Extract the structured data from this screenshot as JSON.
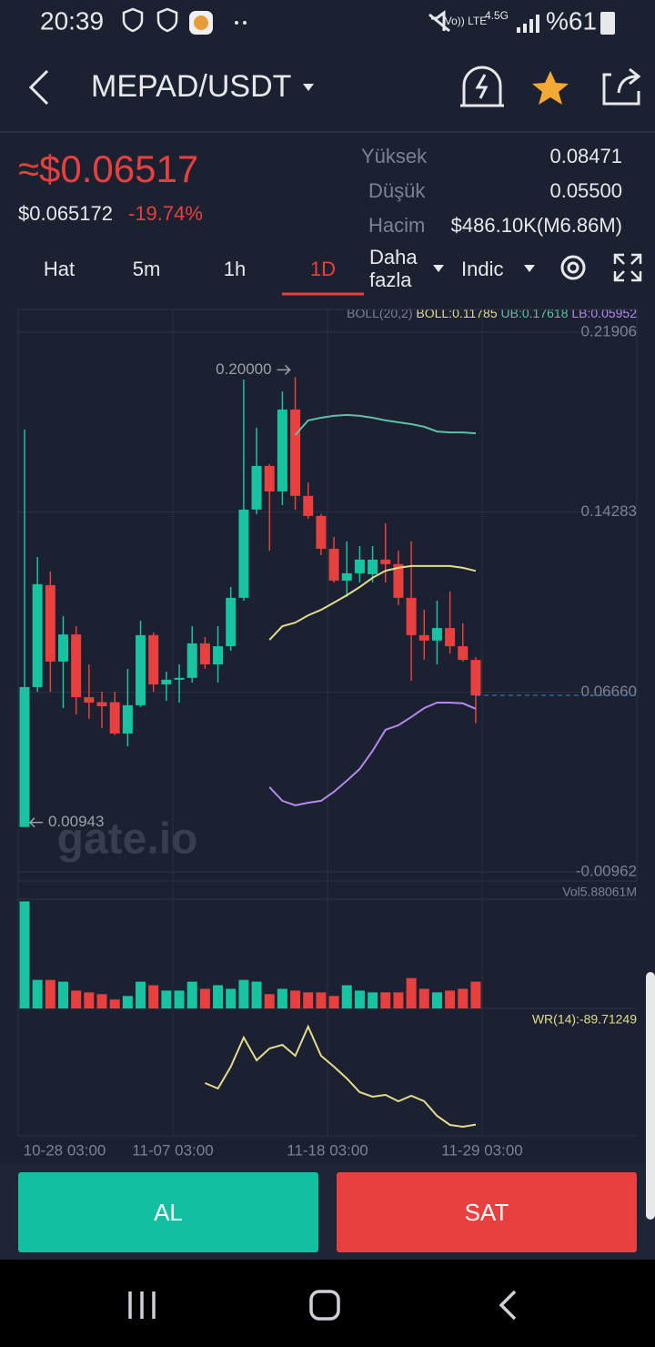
{
  "status_bar": {
    "time": "20:39",
    "network": "4.5G",
    "battery": "%61"
  },
  "header": {
    "pair": "MEPAD/USDT"
  },
  "price": {
    "approx": "≈$0.06517",
    "exact": "$0.065172",
    "change": "-19.74%"
  },
  "stats": [
    {
      "label": "Yüksek",
      "value": "0.08471"
    },
    {
      "label": "Düşük",
      "value": "0.05500"
    },
    {
      "label": "Hacim",
      "value": "$486.10K(M6.86M)"
    }
  ],
  "tabs": [
    "Hat",
    "5m",
    "1h",
    "1D"
  ],
  "more": [
    "Daha",
    "fazla"
  ],
  "indic": "Indic",
  "chart_data": {
    "type": "candlestick",
    "up_color": "#17c3a1",
    "down_color": "#e8403e",
    "ylim": [
      -0.01348,
      0.2287
    ],
    "yticks": [
      0.21906,
      0.14283,
      {
        "value": 0.0666,
        "label": "0.06660"
      },
      -0.00962
    ],
    "x_labels": [
      "10-28 03:00",
      "11-07 03:00",
      "11-18 03:00",
      "11-29 03:00"
    ],
    "open": [
      0.0094,
      0.0687,
      0.1119,
      0.0795,
      0.091,
      0.0644,
      0.0623,
      0.0623,
      0.049,
      0.061,
      0.0907,
      0.0698,
      0.0718,
      0.0726,
      0.0872,
      0.0783,
      0.086,
      0.1065,
      0.1439,
      0.1624,
      0.1516,
      0.1863,
      0.1497,
      0.1412,
      0.1273,
      0.1138,
      0.1169,
      0.1165,
      0.1227,
      0.1208,
      0.1065,
      0.0907,
      0.0884,
      0.0937,
      0.086,
      0.0802
    ],
    "high": [
      0.1778,
      0.1238,
      0.1177,
      0.0988,
      0.0945,
      0.0783,
      0.0667,
      0.0667,
      0.0764,
      0.0968,
      0.0918,
      0.0752,
      0.0783,
      0.0945,
      0.0899,
      0.0945,
      0.1111,
      0.199,
      0.1786,
      0.1632,
      0.194,
      0.2,
      0.1554,
      0.142,
      0.1323,
      0.1304,
      0.1284,
      0.1284,
      0.1381,
      0.1265,
      0.1304,
      0.1015,
      0.1053,
      0.1092,
      0.0957,
      0.0814
    ],
    "low": [
      0.0094,
      0.0667,
      0.0667,
      0.0598,
      0.0571,
      0.0552,
      0.0514,
      0.0483,
      0.0436,
      0.0602,
      0.0667,
      0.0629,
      0.0621,
      0.0706,
      0.0764,
      0.0706,
      0.0841,
      0.1053,
      0.1419,
      0.1265,
      0.1458,
      0.1439,
      0.14,
      0.1246,
      0.113,
      0.1069,
      0.113,
      0.113,
      0.113,
      0.1034,
      0.0714,
      0.0803,
      0.0783,
      0.0829,
      0.0795,
      0.0533
    ],
    "close": [
      0.0687,
      0.1123,
      0.0795,
      0.091,
      0.0644,
      0.0621,
      0.0606,
      0.049,
      0.061,
      0.0907,
      0.0698,
      0.0718,
      0.0726,
      0.0872,
      0.0783,
      0.086,
      0.1065,
      0.1439,
      0.1624,
      0.1516,
      0.1863,
      0.1497,
      0.1412,
      0.1273,
      0.1138,
      0.1169,
      0.1227,
      0.1227,
      0.1208,
      0.1065,
      0.0907,
      0.0884,
      0.0937,
      0.086,
      0.0802,
      0.06517
    ],
    "max_label": "0.20000",
    "min_label": "0.00943",
    "watermark": "gate.io",
    "boll_legend": [
      "BOLL(20,2)",
      "BOLL:0.11785",
      "UB:0.17618",
      "LB:0.05952"
    ],
    "boll": [
      {
        "name": "mid",
        "color": "#e3dc8c",
        "values": [
          null,
          null,
          null,
          null,
          null,
          null,
          null,
          null,
          null,
          null,
          null,
          null,
          null,
          null,
          null,
          null,
          null,
          null,
          null,
          0.0887,
          0.0945,
          0.096,
          0.0991,
          0.1014,
          0.1045,
          0.1076,
          0.1111,
          0.115,
          0.118,
          0.1192,
          0.12,
          0.12,
          0.12,
          0.12,
          0.1192,
          0.1179
        ]
      },
      {
        "name": "upper",
        "color": "#5fbfa8",
        "values": [
          null,
          null,
          null,
          null,
          null,
          null,
          null,
          null,
          null,
          null,
          null,
          null,
          null,
          null,
          null,
          null,
          null,
          null,
          null,
          null,
          null,
          0.1755,
          0.1817,
          0.1828,
          0.1836,
          0.184,
          0.1836,
          0.1828,
          0.1817,
          0.1809,
          0.1801,
          0.179,
          0.177,
          0.1766,
          0.1766,
          0.1762
        ]
      },
      {
        "name": "lower",
        "color": "#b888ee",
        "values": [
          null,
          null,
          null,
          null,
          null,
          null,
          null,
          null,
          null,
          null,
          null,
          null,
          null,
          null,
          null,
          null,
          null,
          null,
          null,
          0.0263,
          0.0205,
          0.0186,
          0.0197,
          0.0205,
          0.0243,
          0.029,
          0.034,
          0.0417,
          0.0506,
          0.0525,
          0.056,
          0.0598,
          0.0621,
          0.0621,
          0.0618,
          0.0595
        ]
      }
    ],
    "volume_label": "Vol5.88061M",
    "volume_ylim": [
      0,
      24
    ],
    "volume": [
      23.52,
      6.27,
      6.27,
      5.88,
      3.92,
      3.53,
      3.14,
      1.96,
      2.74,
      5.88,
      5.1,
      3.92,
      3.92,
      5.88,
      4.31,
      5.1,
      4.31,
      6.27,
      5.88,
      3.14,
      4.31,
      3.92,
      3.53,
      3.53,
      2.74,
      5.1,
      3.92,
      3.53,
      3.53,
      3.53,
      6.66,
      4.31,
      3.53,
      3.92,
      4.31,
      5.88
    ],
    "wr_label": "WR(14):-89.71249",
    "wr_color": "#e3dc8c",
    "wr_ylim": [
      -100,
      0
    ],
    "wr": [
      null,
      null,
      null,
      null,
      null,
      null,
      null,
      null,
      null,
      null,
      null,
      null,
      null,
      null,
      -51.7,
      -56.7,
      -36.7,
      -10,
      -30.8,
      -20,
      -16.7,
      -26.7,
      0,
      -26.7,
      -36.7,
      -47.5,
      -60,
      -64.2,
      -62.5,
      -68.3,
      -63.3,
      -68.3,
      -81.7,
      -90,
      -91.7,
      -89.7
    ]
  },
  "buttons": {
    "buy": "AL",
    "sell": "SAT"
  }
}
